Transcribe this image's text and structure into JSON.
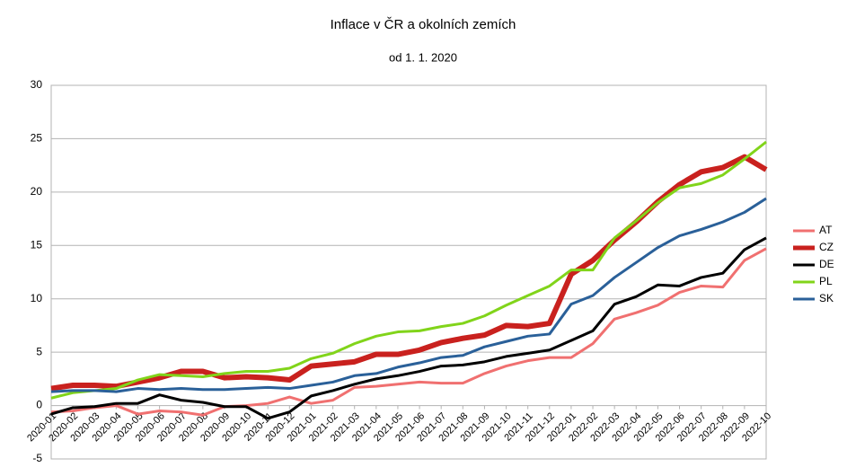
{
  "chart_data": {
    "type": "line",
    "title": "Inflace v ČR a okolních zemích",
    "subtitle": "od 1. 1. 2020",
    "categories": [
      "2020-01",
      "2020-02",
      "2020-03",
      "2020-04",
      "2020-05",
      "2020-06",
      "2020-07",
      "2020-08",
      "2020-09",
      "2020-10",
      "2020-11",
      "2020-12",
      "2021-01",
      "2021-02",
      "2021-03",
      "2021-04",
      "2021-05",
      "2021-06",
      "2021-07",
      "2021-08",
      "2021-09",
      "2021-10",
      "2021-11",
      "2021-12",
      "2022-01",
      "2022-02",
      "2022-03",
      "2022-04",
      "2022-05",
      "2022-06",
      "2022-07",
      "2022-08",
      "2022-09",
      "2022-10"
    ],
    "series": [
      {
        "name": "AT",
        "color": "#f07070",
        "values": [
          -0.6,
          -0.5,
          -0.2,
          0.0,
          -0.8,
          -0.5,
          -0.6,
          -0.9,
          -0.1,
          0.0,
          0.2,
          0.8,
          0.2,
          0.5,
          1.7,
          1.8,
          2.0,
          2.2,
          2.1,
          2.1,
          3.0,
          3.7,
          4.2,
          4.5,
          4.5,
          5.8,
          8.1,
          8.7,
          9.4,
          10.6,
          11.2,
          11.1,
          13.6,
          14.7
        ]
      },
      {
        "name": "CZ",
        "color": "#c9211e",
        "values": [
          1.6,
          1.9,
          1.9,
          1.8,
          2.2,
          2.6,
          3.2,
          3.2,
          2.6,
          2.7,
          2.6,
          2.4,
          3.7,
          3.9,
          4.1,
          4.8,
          4.8,
          5.2,
          5.9,
          6.3,
          6.6,
          7.5,
          7.4,
          7.7,
          12.3,
          13.6,
          15.5,
          17.2,
          19.1,
          20.7,
          21.9,
          22.3,
          23.3,
          22.1
        ]
      },
      {
        "name": "DE",
        "color": "#000000",
        "values": [
          -0.8,
          -0.2,
          -0.1,
          0.2,
          0.2,
          1.0,
          0.5,
          0.3,
          -0.1,
          -0.1,
          -1.2,
          -0.6,
          0.9,
          1.4,
          2.0,
          2.5,
          2.8,
          3.2,
          3.7,
          3.8,
          4.1,
          4.6,
          4.9,
          5.2,
          6.1,
          7.0,
          9.5,
          10.2,
          11.3,
          11.2,
          12.0,
          12.4,
          14.6,
          15.7
        ]
      },
      {
        "name": "PL",
        "color": "#81d41a",
        "values": [
          0.7,
          1.2,
          1.4,
          1.6,
          2.4,
          2.9,
          2.8,
          2.7,
          3.0,
          3.2,
          3.2,
          3.5,
          4.4,
          4.9,
          5.8,
          6.5,
          6.9,
          7.0,
          7.4,
          7.7,
          8.4,
          9.4,
          10.3,
          11.2,
          12.7,
          12.7,
          15.7,
          17.3,
          19.0,
          20.4,
          20.8,
          21.6,
          23.1,
          24.7
        ]
      },
      {
        "name": "SK",
        "color": "#2a6099",
        "values": [
          1.3,
          1.4,
          1.4,
          1.3,
          1.6,
          1.5,
          1.6,
          1.5,
          1.5,
          1.6,
          1.7,
          1.6,
          1.9,
          2.2,
          2.8,
          3.0,
          3.6,
          4.0,
          4.5,
          4.7,
          5.5,
          6.0,
          6.5,
          6.7,
          9.5,
          10.3,
          12.0,
          13.4,
          14.8,
          15.9,
          16.5,
          17.2,
          18.1,
          19.4
        ]
      }
    ],
    "ylim": [
      -5,
      30
    ],
    "yticks": [
      -5,
      0,
      5,
      10,
      15,
      20,
      25,
      30
    ],
    "grid": true,
    "legend": "right"
  }
}
